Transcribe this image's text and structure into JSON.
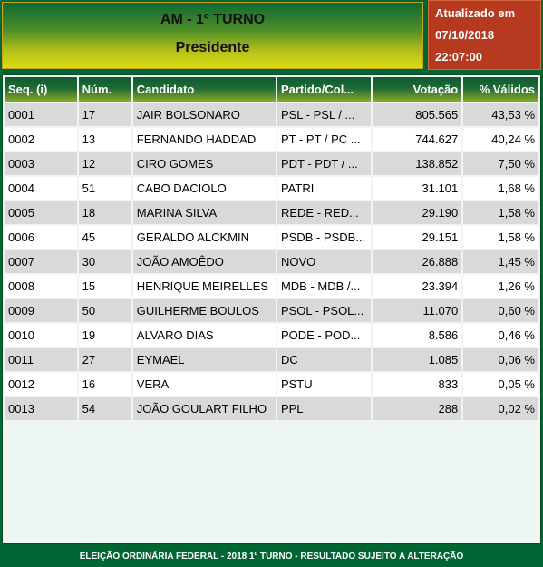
{
  "header": {
    "line1": "AM - 1º TURNO",
    "line2": "Presidente"
  },
  "update": {
    "label": "Atualizado em",
    "date": "07/10/2018",
    "time": "22:07:00"
  },
  "table": {
    "headers": [
      "Seq.   (i)",
      "Núm.",
      "Candidato",
      "Partido/Col...",
      "Votação",
      "% Válidos"
    ],
    "rows": [
      [
        "0001",
        "17",
        "JAIR BOLSONARO",
        "PSL - PSL / ...",
        "805.565",
        "43,53 %"
      ],
      [
        "0002",
        "13",
        "FERNANDO HADDAD",
        "PT - PT / PC ...",
        "744.627",
        "40,24 %"
      ],
      [
        "0003",
        "12",
        "CIRO GOMES",
        "PDT - PDT / ...",
        "138.852",
        "7,50 %"
      ],
      [
        "0004",
        "51",
        "CABO DACIOLO",
        "PATRI",
        "31.101",
        "1,68 %"
      ],
      [
        "0005",
        "18",
        "MARINA SILVA",
        "REDE - RED...",
        "29.190",
        "1,58 %"
      ],
      [
        "0006",
        "45",
        "GERALDO ALCKMIN",
        "PSDB - PSDB...",
        "29.151",
        "1,58 %"
      ],
      [
        "0007",
        "30",
        "JOÃO AMOÊDO",
        "NOVO",
        "26.888",
        "1,45 %"
      ],
      [
        "0008",
        "15",
        "HENRIQUE MEIRELLES",
        "MDB - MDB /...",
        "23.394",
        "1,26 %"
      ],
      [
        "0009",
        "50",
        "GUILHERME BOULOS",
        "PSOL - PSOL...",
        "11.070",
        "0,60 %"
      ],
      [
        "0010",
        "19",
        "ALVARO DIAS",
        "PODE - POD...",
        "8.586",
        "0,46 %"
      ],
      [
        "0011",
        "27",
        "EYMAEL",
        "DC",
        "1.085",
        "0,06 %"
      ],
      [
        "0012",
        "16",
        "VERA",
        "PSTU",
        "833",
        "0,05 %"
      ],
      [
        "0013",
        "54",
        "JOÃO GOULART FILHO",
        "PPL",
        "288",
        "0,02 %"
      ]
    ]
  },
  "footer": "ELEIÇÃO ORDINÁRIA FEDERAL - 2018 1º TURNO - RESULTADO SUJEITO A ALTERAÇÃO"
}
